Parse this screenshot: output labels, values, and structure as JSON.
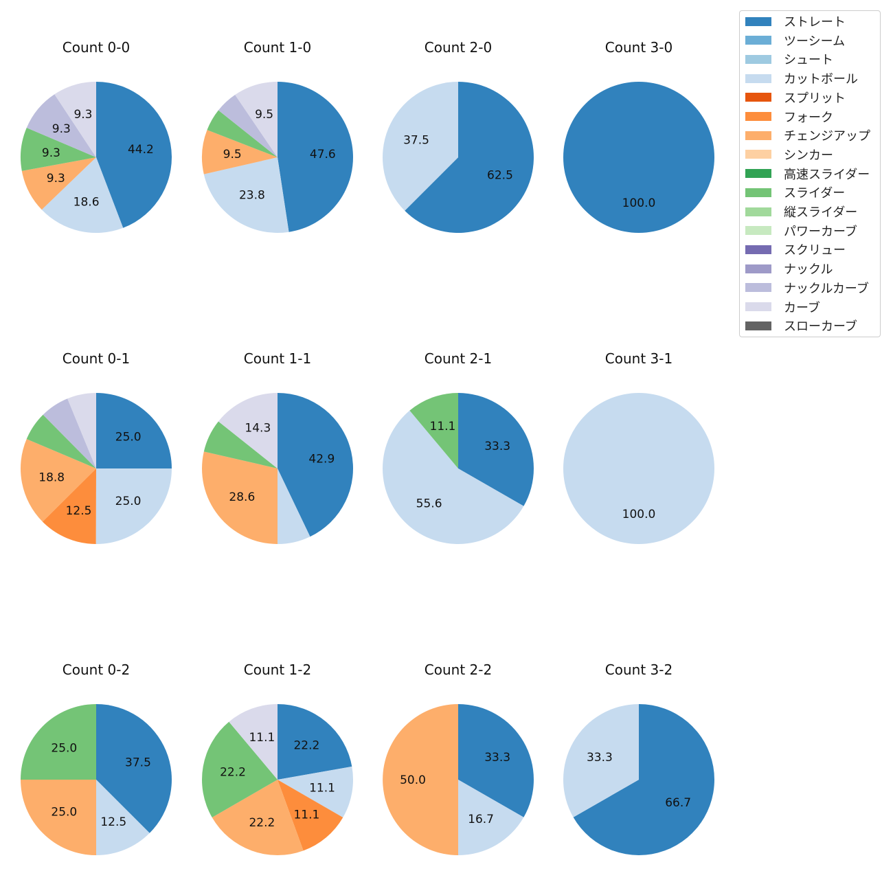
{
  "colors": {
    "ストレート": "#3182bd",
    "ツーシーム": "#6baed6",
    "シュート": "#9ecae1",
    "カットボール": "#c6dbef",
    "スプリット": "#e6550d",
    "フォーク": "#fd8d3c",
    "チェンジアップ": "#fdae6b",
    "シンカー": "#fdd0a2",
    "高速スライダー": "#31a354",
    "スライダー": "#74c476",
    "縦スライダー": "#a1d99b",
    "パワーカーブ": "#c7e9c0",
    "スクリュー": "#756bb1",
    "ナックル": "#9e9ac8",
    "ナックルカーブ": "#bcbddc",
    "カーブ": "#dadaeb",
    "スローカーブ": "#636363"
  },
  "legend": [
    "ストレート",
    "ツーシーム",
    "シュート",
    "カットボール",
    "スプリット",
    "フォーク",
    "チェンジアップ",
    "シンカー",
    "高速スライダー",
    "スライダー",
    "縦スライダー",
    "パワーカーブ",
    "スクリュー",
    "ナックル",
    "ナックルカーブ",
    "カーブ",
    "スローカーブ"
  ],
  "chart_data": [
    {
      "type": "pie",
      "title": "Count 0-0",
      "slices": [
        {
          "pitch": "ストレート",
          "value": 44.2,
          "label": "44.2"
        },
        {
          "pitch": "カットボール",
          "value": 18.6,
          "label": "18.6"
        },
        {
          "pitch": "チェンジアップ",
          "value": 9.3,
          "label": "9.3"
        },
        {
          "pitch": "スライダー",
          "value": 9.3,
          "label": "9.3"
        },
        {
          "pitch": "ナックルカーブ",
          "value": 9.3,
          "label": "9.3"
        },
        {
          "pitch": "カーブ",
          "value": 9.3,
          "label": "9.3"
        }
      ]
    },
    {
      "type": "pie",
      "title": "Count 1-0",
      "slices": [
        {
          "pitch": "ストレート",
          "value": 47.6,
          "label": "47.6"
        },
        {
          "pitch": "カットボール",
          "value": 23.8,
          "label": "23.8"
        },
        {
          "pitch": "チェンジアップ",
          "value": 9.5,
          "label": "9.5"
        },
        {
          "pitch": "スライダー",
          "value": 4.8,
          "label": ""
        },
        {
          "pitch": "ナックルカーブ",
          "value": 4.8,
          "label": ""
        },
        {
          "pitch": "カーブ",
          "value": 9.5,
          "label": "9.5"
        }
      ]
    },
    {
      "type": "pie",
      "title": "Count 2-0",
      "slices": [
        {
          "pitch": "ストレート",
          "value": 62.5,
          "label": "62.5"
        },
        {
          "pitch": "カットボール",
          "value": 37.5,
          "label": "37.5"
        }
      ]
    },
    {
      "type": "pie",
      "title": "Count 3-0",
      "slices": [
        {
          "pitch": "ストレート",
          "value": 100.0,
          "label": "100.0"
        }
      ]
    },
    {
      "type": "pie",
      "title": "Count 0-1",
      "slices": [
        {
          "pitch": "ストレート",
          "value": 25.0,
          "label": "25.0"
        },
        {
          "pitch": "カットボール",
          "value": 25.0,
          "label": "25.0"
        },
        {
          "pitch": "フォーク",
          "value": 12.5,
          "label": "12.5"
        },
        {
          "pitch": "チェンジアップ",
          "value": 18.8,
          "label": "18.8"
        },
        {
          "pitch": "スライダー",
          "value": 6.2,
          "label": ""
        },
        {
          "pitch": "ナックルカーブ",
          "value": 6.2,
          "label": ""
        },
        {
          "pitch": "カーブ",
          "value": 6.2,
          "label": ""
        }
      ]
    },
    {
      "type": "pie",
      "title": "Count 1-1",
      "slices": [
        {
          "pitch": "ストレート",
          "value": 42.9,
          "label": "42.9"
        },
        {
          "pitch": "カットボール",
          "value": 7.1,
          "label": ""
        },
        {
          "pitch": "チェンジアップ",
          "value": 28.6,
          "label": "28.6"
        },
        {
          "pitch": "スライダー",
          "value": 7.1,
          "label": ""
        },
        {
          "pitch": "カーブ",
          "value": 14.3,
          "label": "14.3"
        }
      ]
    },
    {
      "type": "pie",
      "title": "Count 2-1",
      "slices": [
        {
          "pitch": "ストレート",
          "value": 33.3,
          "label": "33.3"
        },
        {
          "pitch": "カットボール",
          "value": 55.6,
          "label": "55.6"
        },
        {
          "pitch": "スライダー",
          "value": 11.1,
          "label": "11.1"
        }
      ]
    },
    {
      "type": "pie",
      "title": "Count 3-1",
      "slices": [
        {
          "pitch": "カットボール",
          "value": 100.0,
          "label": "100.0"
        }
      ]
    },
    {
      "type": "pie",
      "title": "Count 0-2",
      "slices": [
        {
          "pitch": "ストレート",
          "value": 37.5,
          "label": "37.5"
        },
        {
          "pitch": "カットボール",
          "value": 12.5,
          "label": "12.5"
        },
        {
          "pitch": "チェンジアップ",
          "value": 25.0,
          "label": "25.0"
        },
        {
          "pitch": "スライダー",
          "value": 25.0,
          "label": "25.0"
        }
      ]
    },
    {
      "type": "pie",
      "title": "Count 1-2",
      "slices": [
        {
          "pitch": "ストレート",
          "value": 22.2,
          "label": "22.2"
        },
        {
          "pitch": "カットボール",
          "value": 11.1,
          "label": "11.1"
        },
        {
          "pitch": "フォーク",
          "value": 11.1,
          "label": "11.1"
        },
        {
          "pitch": "チェンジアップ",
          "value": 22.2,
          "label": "22.2"
        },
        {
          "pitch": "スライダー",
          "value": 22.2,
          "label": "22.2"
        },
        {
          "pitch": "カーブ",
          "value": 11.1,
          "label": "11.1"
        }
      ]
    },
    {
      "type": "pie",
      "title": "Count 2-2",
      "slices": [
        {
          "pitch": "ストレート",
          "value": 33.3,
          "label": "33.3"
        },
        {
          "pitch": "カットボール",
          "value": 16.7,
          "label": "16.7"
        },
        {
          "pitch": "チェンジアップ",
          "value": 50.0,
          "label": "50.0"
        }
      ]
    },
    {
      "type": "pie",
      "title": "Count 3-2",
      "slices": [
        {
          "pitch": "ストレート",
          "value": 66.7,
          "label": "66.7"
        },
        {
          "pitch": "カットボール",
          "value": 33.3,
          "label": "33.3"
        }
      ]
    }
  ]
}
